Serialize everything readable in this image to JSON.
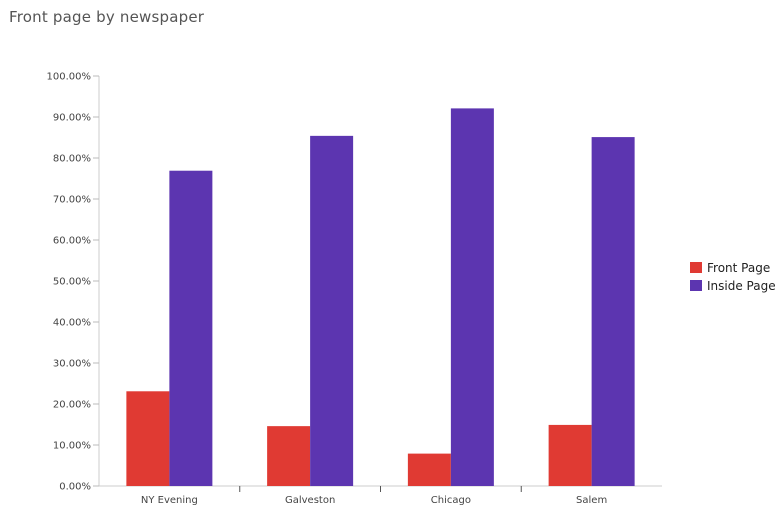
{
  "chart_data": {
    "type": "bar",
    "title": "Front page by newspaper",
    "xlabel": "",
    "ylabel": "",
    "categories": [
      "NY Evening",
      "Galveston",
      "Chicago",
      "Salem"
    ],
    "series": [
      {
        "name": "Front Page",
        "color": "#e03a33",
        "values": [
          23.1,
          14.6,
          7.9,
          14.9
        ]
      },
      {
        "name": "Inside Page",
        "color": "#5c35b0",
        "values": [
          76.9,
          85.4,
          92.1,
          85.1
        ]
      }
    ],
    "ylim": [
      0,
      100
    ],
    "yticks": [
      "0.00%",
      "10.00%",
      "20.00%",
      "30.00%",
      "40.00%",
      "50.00%",
      "60.00%",
      "70.00%",
      "80.00%",
      "90.00%",
      "100.00%"
    ],
    "grid": false,
    "legend_position": "right"
  }
}
